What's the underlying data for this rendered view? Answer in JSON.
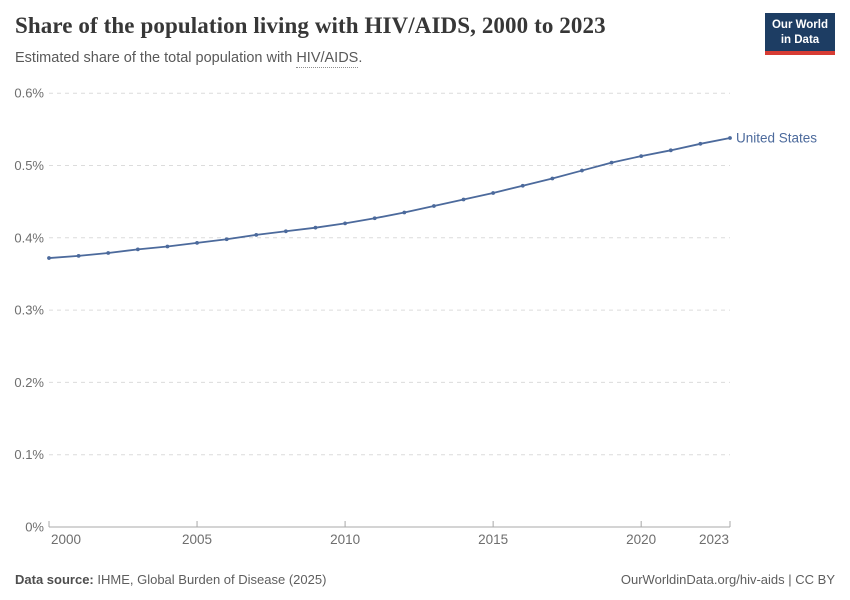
{
  "header": {
    "title": "Share of the population living with HIV/AIDS, 2000 to 2023",
    "subtitle_prefix": "Estimated share of the total population with ",
    "subtitle_link": "HIV/AIDS",
    "subtitle_suffix": ".",
    "logo": {
      "line1": "Our World",
      "line2": "in Data",
      "bg_color": "#1d3d63",
      "accent_color": "#d73c34"
    }
  },
  "chart_data": {
    "type": "line",
    "title": "Share of the population living with HIV/AIDS, 2000 to 2023",
    "subtitle": "Estimated share of the total population with HIV/AIDS.",
    "xlabel": "",
    "ylabel": "",
    "xlim": [
      2000,
      2023
    ],
    "ylim_percent": [
      0,
      0.6
    ],
    "grid": "horizontal-dashed",
    "legend_position": "end-of-line-label",
    "colors": {
      "line": "#4c6a9c",
      "gridline": "#dcdcdc",
      "axis": "#a8a8a8",
      "tick_label": "#6e6e6e"
    },
    "y_ticks": [
      {
        "value": 0,
        "label": "0%"
      },
      {
        "value": 0.1,
        "label": "0.1%"
      },
      {
        "value": 0.2,
        "label": "0.2%"
      },
      {
        "value": 0.3,
        "label": "0.3%"
      },
      {
        "value": 0.4,
        "label": "0.4%"
      },
      {
        "value": 0.5,
        "label": "0.5%"
      },
      {
        "value": 0.6,
        "label": "0.6%"
      }
    ],
    "x_ticks": [
      2000,
      2005,
      2010,
      2015,
      2020,
      2023
    ],
    "series": [
      {
        "name": "United States",
        "color": "#4c6a9c",
        "x": [
          2000,
          2001,
          2002,
          2003,
          2004,
          2005,
          2006,
          2007,
          2008,
          2009,
          2010,
          2011,
          2012,
          2013,
          2014,
          2015,
          2016,
          2017,
          2018,
          2019,
          2020,
          2021,
          2022,
          2023
        ],
        "values_percent": [
          0.372,
          0.375,
          0.379,
          0.384,
          0.388,
          0.393,
          0.398,
          0.404,
          0.409,
          0.414,
          0.42,
          0.427,
          0.435,
          0.444,
          0.453,
          0.462,
          0.472,
          0.482,
          0.493,
          0.504,
          0.513,
          0.521,
          0.53,
          0.538
        ]
      }
    ]
  },
  "footer": {
    "source_label": "Data source:",
    "source_text": " IHME, Global Burden of Disease (2025)",
    "link_text": "OurWorldinData.org/hiv-aids | CC BY"
  }
}
